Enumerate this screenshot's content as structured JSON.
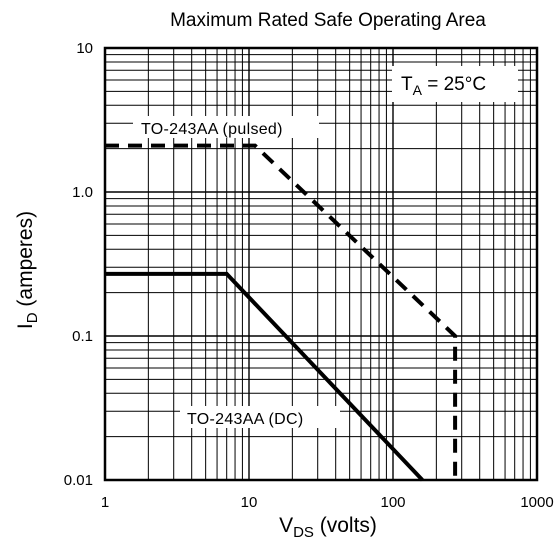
{
  "chart_data": {
    "type": "line",
    "title": "Maximum Rated Safe Operating Area",
    "xlabel": {
      "main": "V",
      "sub": "DS",
      "suffix": " (volts)"
    },
    "ylabel": {
      "main": "I",
      "sub": "D",
      "suffix": " (amperes)"
    },
    "x_scale": "log",
    "y_scale": "log",
    "xlim": [
      1,
      1000
    ],
    "ylim": [
      0.01,
      10
    ],
    "grid": true,
    "x_tick_labels": [
      {
        "value": 1,
        "label": "1"
      },
      {
        "value": 10,
        "label": "10"
      },
      {
        "value": 100,
        "label": "100"
      },
      {
        "value": 1000,
        "label": "1000"
      }
    ],
    "y_tick_labels": [
      {
        "value": 0.01,
        "label": "0.01"
      },
      {
        "value": 0.1,
        "label": "0.1"
      },
      {
        "value": 1,
        "label": "1.0"
      },
      {
        "value": 10,
        "label": "10"
      }
    ],
    "series": [
      {
        "name": "TO-243AA (pulsed)",
        "style": "dashed",
        "x": [
          1,
          11,
          270,
          270
        ],
        "y": [
          2.1,
          2.1,
          0.1,
          0.01
        ]
      },
      {
        "name": "TO-243AA (DC)",
        "style": "solid",
        "x": [
          1,
          7,
          160
        ],
        "y": [
          0.27,
          0.27,
          0.01
        ]
      }
    ],
    "annotations": {
      "temperature": {
        "main": "T",
        "sub": "A",
        "suffix": " = 25°C"
      }
    }
  }
}
